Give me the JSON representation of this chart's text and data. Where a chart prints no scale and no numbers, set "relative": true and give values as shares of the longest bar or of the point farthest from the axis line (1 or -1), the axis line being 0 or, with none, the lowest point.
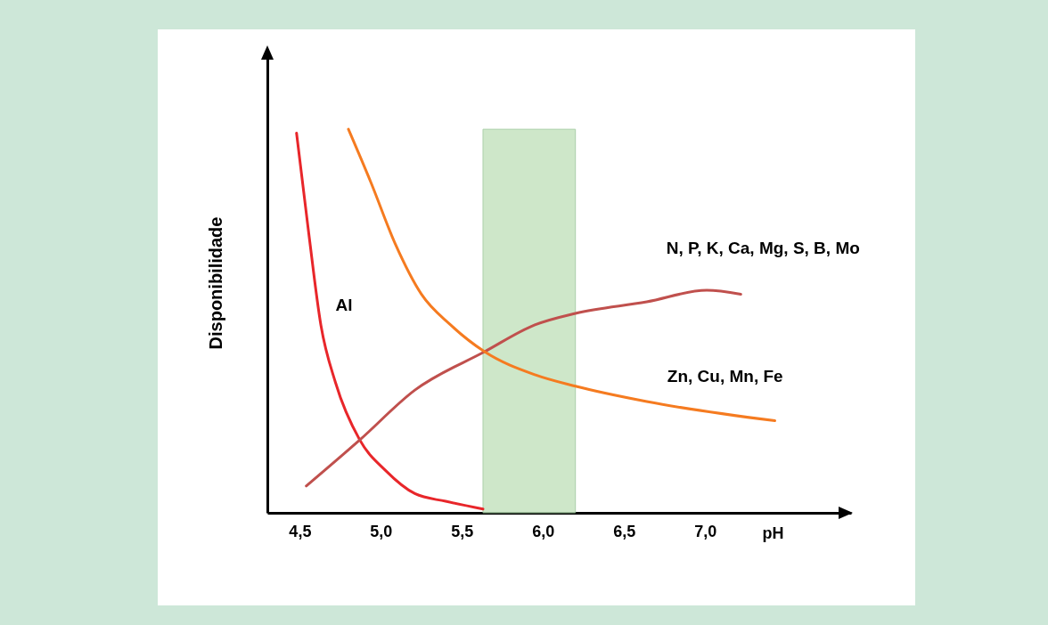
{
  "chart_data": {
    "type": "line",
    "relative": true,
    "xlabel": "pH",
    "ylabel": "Disponibilidade",
    "xlim": [
      4.3,
      7.9
    ],
    "xticks": [
      {
        "value": 4.5,
        "label": "4,5"
      },
      {
        "value": 5.0,
        "label": "5,0"
      },
      {
        "value": 5.5,
        "label": "5,5"
      },
      {
        "value": 6.0,
        "label": "6,0"
      },
      {
        "value": 6.5,
        "label": "6,5"
      },
      {
        "value": 7.0,
        "label": "7,0"
      }
    ],
    "bands": [
      {
        "axis": "x",
        "from": 5.63,
        "to": 6.2,
        "color": "#c6e3c0"
      }
    ],
    "series": [
      {
        "name": "Al",
        "color": "#e8262a",
        "x": [
          4.48,
          4.555,
          4.63,
          4.72,
          4.87,
          5.03,
          5.21,
          5.4,
          5.63
        ],
        "values": [
          0.99,
          0.73,
          0.49,
          0.34,
          0.19,
          0.11,
          0.05,
          0.03,
          0.01
        ]
      },
      {
        "name": "N, P, K, Ca, Mg, S, B, Mo",
        "color": "#c0504d",
        "x": [
          4.54,
          4.87,
          5.21,
          5.64,
          5.95,
          6.2,
          6.64,
          7.01,
          7.22
        ],
        "values": [
          0.07,
          0.19,
          0.32,
          0.42,
          0.49,
          0.52,
          0.55,
          0.58,
          0.57
        ]
      },
      {
        "name": "Zn, Cu, Mn, Fe",
        "color": "#f57b20",
        "x": [
          4.8,
          4.94,
          5.09,
          5.25,
          5.43,
          5.64,
          5.95,
          6.2,
          6.64,
          7.43
        ],
        "values": [
          1.0,
          0.86,
          0.7,
          0.57,
          0.49,
          0.42,
          0.36,
          0.33,
          0.29,
          0.24
        ]
      }
    ]
  }
}
